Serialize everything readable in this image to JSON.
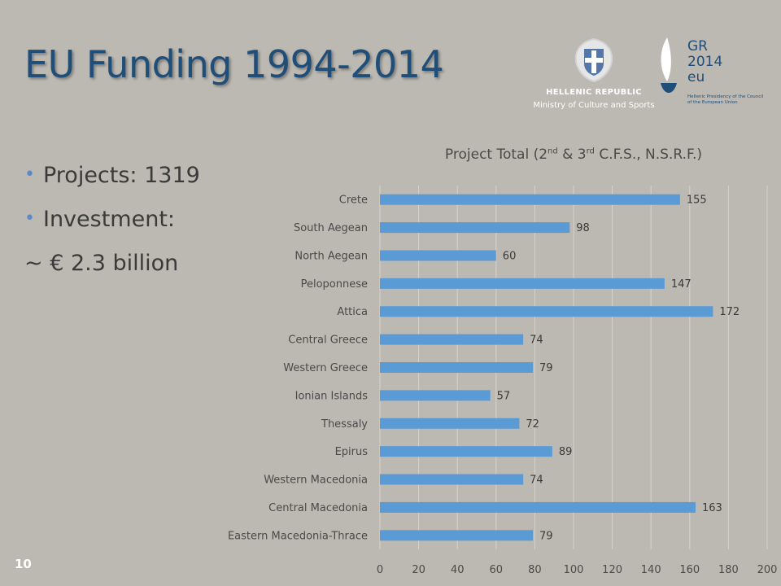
{
  "slide": {
    "title": "EU Funding 1994-2014",
    "number": "10"
  },
  "logos": {
    "gov_title": "HELLENIC REPUBLIC",
    "gov_subtitle": "Ministry of Culture and Sports",
    "presidency_lines": [
      "GR",
      "2014",
      "eu"
    ],
    "presidency_subtitle": "Hellenic Presidency of the Council of the European Union"
  },
  "bullets": {
    "projects": "Projects: 1319",
    "investment": "Investment:",
    "investment_value": "~ € 2.3 billion"
  },
  "chart_title": {
    "part1": "Project Total (2",
    "sup1": "nd",
    "part2": " & 3",
    "sup2": "rd",
    "part3": " C.F.S., N.S.R.F.)"
  },
  "colors": {
    "bar": "#5b9bd5",
    "title": "#1f4e79",
    "background": "#bcb8b2"
  },
  "chart_data": {
    "type": "bar",
    "orientation": "horizontal",
    "title": "Project Total (2nd & 3rd C.F.S., N.S.R.F.)",
    "categories": [
      "Crete",
      "South Aegean",
      "North Aegean",
      "Peloponnese",
      "Attica",
      "Central Greece",
      "Western Greece",
      "Ionian Islands",
      "Thessaly",
      "Epirus",
      "Western Macedonia",
      "Central Macedonia",
      "Eastern Macedonia-Thrace"
    ],
    "values": [
      155,
      98,
      60,
      147,
      172,
      74,
      79,
      57,
      72,
      89,
      74,
      163,
      79
    ],
    "xlim": [
      0,
      200
    ],
    "xticks": [
      0,
      20,
      40,
      60,
      80,
      100,
      120,
      140,
      160,
      180,
      200
    ],
    "grid": true,
    "data_labels": true
  }
}
